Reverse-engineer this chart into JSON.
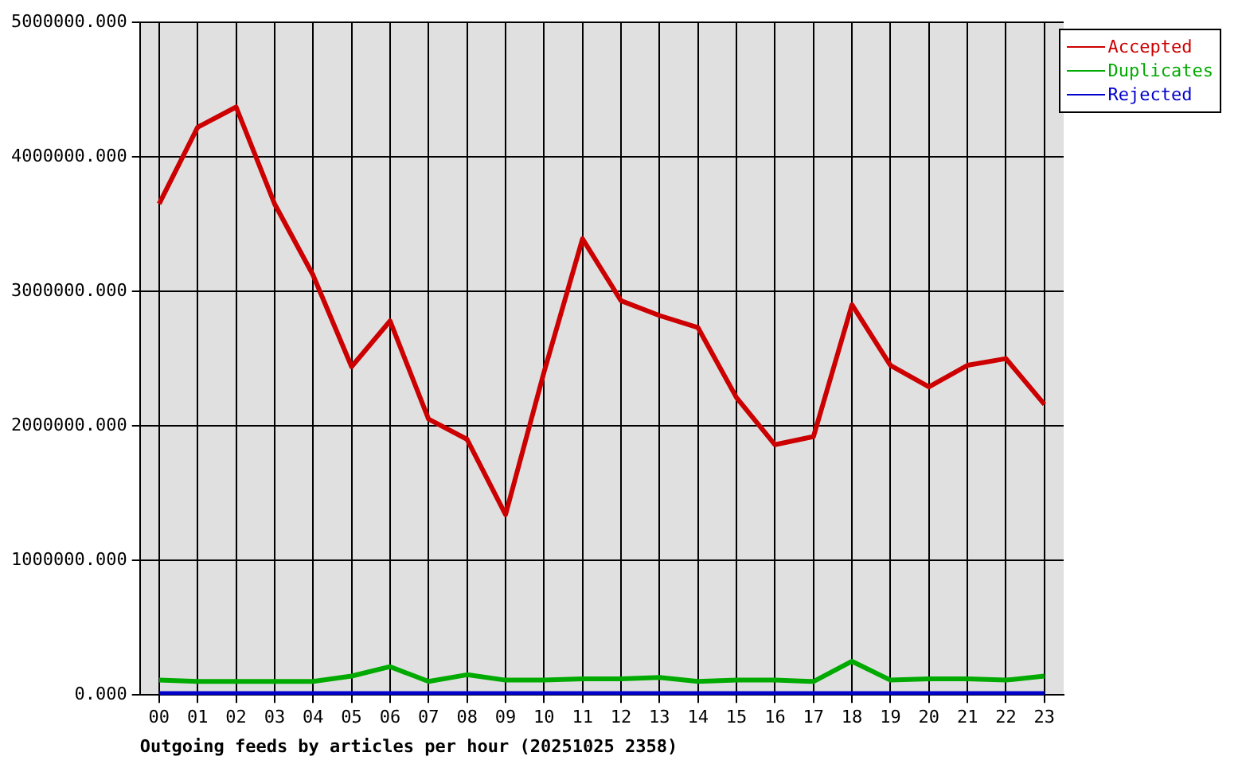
{
  "chart_data": {
    "type": "line",
    "xlabel": "Outgoing feeds by articles per hour (20251025 2358)",
    "categories": [
      "00",
      "01",
      "02",
      "03",
      "04",
      "05",
      "06",
      "07",
      "08",
      "09",
      "10",
      "11",
      "12",
      "13",
      "14",
      "15",
      "16",
      "17",
      "18",
      "19",
      "20",
      "21",
      "22",
      "23"
    ],
    "series": [
      {
        "name": "Accepted",
        "color": "#cc0000",
        "values": [
          3650000,
          4220000,
          4370000,
          3650000,
          3120000,
          2440000,
          2780000,
          2050000,
          1900000,
          1340000,
          2400000,
          3390000,
          2930000,
          2820000,
          2730000,
          2210000,
          1860000,
          1920000,
          2900000,
          2450000,
          2290000,
          2450000,
          2500000,
          2160000
        ]
      },
      {
        "name": "Duplicates",
        "color": "#00aa00",
        "values": [
          110000,
          100000,
          100000,
          100000,
          100000,
          140000,
          210000,
          100000,
          150000,
          110000,
          110000,
          120000,
          120000,
          130000,
          100000,
          110000,
          110000,
          100000,
          250000,
          110000,
          120000,
          120000,
          110000,
          140000
        ]
      },
      {
        "name": "Rejected",
        "color": "#0000cc",
        "values": [
          10000,
          10000,
          10000,
          10000,
          10000,
          10000,
          10000,
          10000,
          10000,
          10000,
          10000,
          10000,
          10000,
          10000,
          10000,
          10000,
          10000,
          10000,
          10000,
          10000,
          10000,
          10000,
          10000,
          10000
        ]
      }
    ],
    "ylim": [
      0,
      5000000
    ],
    "yticks": [
      {
        "value": 0,
        "label": "0.000"
      },
      {
        "value": 1000000,
        "label": "1000000.000"
      },
      {
        "value": 2000000,
        "label": "2000000.000"
      },
      {
        "value": 3000000,
        "label": "3000000.000"
      },
      {
        "value": 4000000,
        "label": "4000000.000"
      },
      {
        "value": 5000000,
        "label": "5000000.000"
      }
    ],
    "grid": true,
    "legend": "top right",
    "marker": "none",
    "line_style": "solid"
  }
}
